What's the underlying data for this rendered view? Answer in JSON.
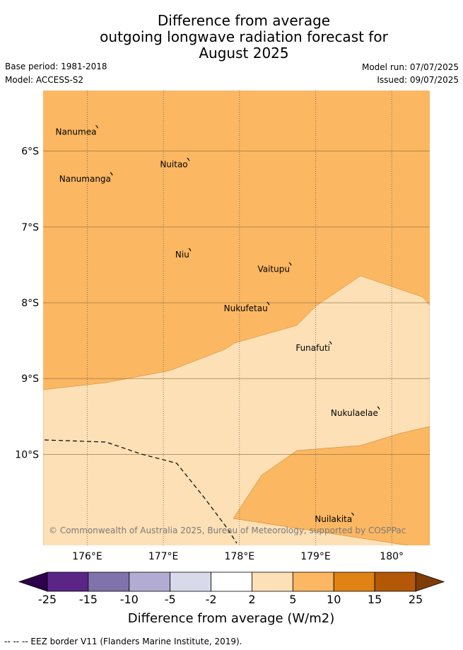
{
  "title": {
    "line1": "Difference from average",
    "line2": "outgoing longwave radiation forecast for",
    "line3": "August 2025"
  },
  "meta": {
    "base_period": "Base period: 1981-2018",
    "model": "Model: ACCESS-S2",
    "model_run": "Model run: 07/07/2025",
    "issued": "Issued: 09/07/2025"
  },
  "map": {
    "lon_range": [
      175.42,
      180.5
    ],
    "lat_range": [
      -11.2,
      -5.2
    ],
    "lon_ticks": [
      {
        "value": 176,
        "label": "176°E"
      },
      {
        "value": 177,
        "label": "177°E"
      },
      {
        "value": 178,
        "label": "178°E"
      },
      {
        "value": 179,
        "label": "179°E"
      },
      {
        "value": 180,
        "label": "180°"
      }
    ],
    "lat_ticks": [
      {
        "value": -6,
        "label": "6°S"
      },
      {
        "value": -7,
        "label": "7°S"
      },
      {
        "value": -8,
        "label": "8°S"
      },
      {
        "value": -9,
        "label": "9°S"
      },
      {
        "value": -10,
        "label": "10°S"
      }
    ],
    "islands": [
      {
        "name": "Nanumea",
        "lon": 176.13,
        "lat": -5.67
      },
      {
        "name": "Nuitao",
        "lon": 177.33,
        "lat": -6.1
      },
      {
        "name": "Nanumanga",
        "lon": 176.32,
        "lat": -6.29
      },
      {
        "name": "Niu",
        "lon": 177.35,
        "lat": -7.29
      },
      {
        "name": "Vaitupu",
        "lon": 178.67,
        "lat": -7.48
      },
      {
        "name": "Nukufetau",
        "lon": 178.38,
        "lat": -8.0
      },
      {
        "name": "Funafuti",
        "lon": 179.2,
        "lat": -8.52
      },
      {
        "name": "Nukulaelae",
        "lon": 179.83,
        "lat": -9.38
      },
      {
        "name": "Nuilakita",
        "lon": 179.49,
        "lat": -10.78
      }
    ],
    "copyright": "© Commonwealth of Australia 2025, Bureau of Meteorology, supported by COSPPac",
    "background_category": "5 to 10 W/m2",
    "regions": [
      {
        "name": "central band",
        "category": "2 to 5 W/m2",
        "color": "#fde0b6"
      },
      {
        "name": "south-east patch",
        "category": "5 to 10 W/m2",
        "color": "#fbb762"
      }
    ]
  },
  "colorbar": {
    "ticks": [
      "-25",
      "-15",
      "-10",
      "-5",
      "-2",
      "2",
      "5",
      "10",
      "15",
      "25"
    ],
    "colors": [
      "#5a2587",
      "#8073ac",
      "#b2abd2",
      "#d8daeb",
      "#ffffff",
      "#fde0b6",
      "#fbb762",
      "#e08214",
      "#b35806"
    ],
    "extend_low_color": "#2d004b",
    "extend_high_color": "#7f3b08",
    "label": "Difference from average (W/m2)"
  },
  "footer": {
    "legend": "--  --  -- EEZ border V11 (Flanders Marine Institute, 2019)."
  }
}
